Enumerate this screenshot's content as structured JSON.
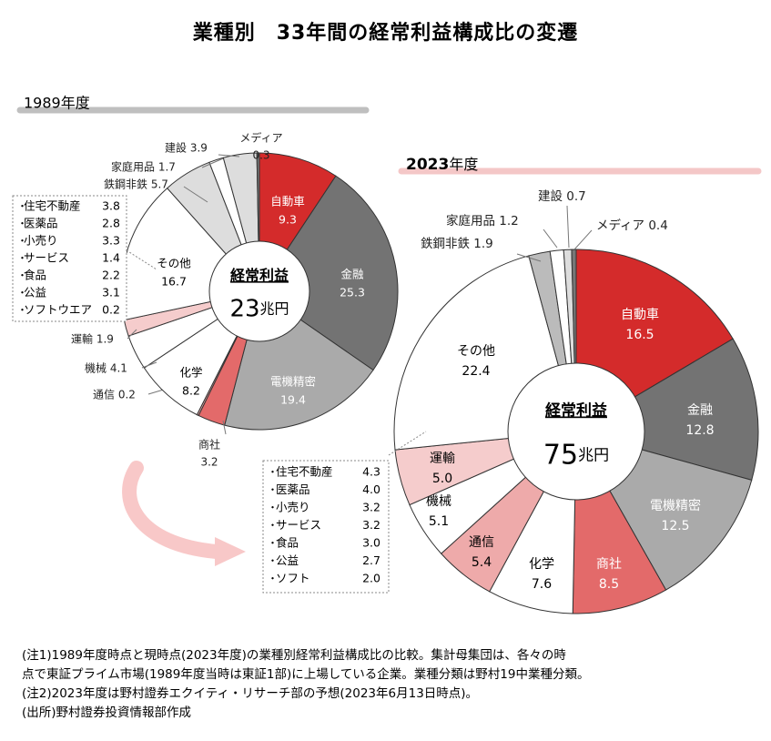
{
  "title": "業種別　33年間の経常利益構成比の変遷",
  "chart_data": [
    {
      "type": "pie",
      "title": "1989年度",
      "center_label": "経常利益",
      "center_value": "23",
      "center_unit": "兆円",
      "slices": [
        {
          "name": "自動車",
          "value": 9.3,
          "value_text": "9.3",
          "color": "#d42b2b"
        },
        {
          "name": "金融",
          "value": 25.3,
          "value_text": "25.3",
          "color": "#737373"
        },
        {
          "name": "電機精密",
          "value": 19.4,
          "value_text": "19.4",
          "color": "#aaaaaa"
        },
        {
          "name": "商社",
          "value": 3.2,
          "value_text": "3.2",
          "color": "#e36a6a"
        },
        {
          "name": "通信",
          "value": 0.2,
          "value_text": "0.2",
          "color": "#eeaaaa"
        },
        {
          "name": "化学",
          "value": 8.2,
          "value_text": "8.2",
          "color": "#ffffff"
        },
        {
          "name": "機械",
          "value": 4.1,
          "value_text": "4.1",
          "color": "#ffffff"
        },
        {
          "name": "運輸",
          "value": 1.9,
          "value_text": "1.9",
          "color": "#f5cccc"
        },
        {
          "name": "その他",
          "value": 16.7,
          "value_text": "16.7",
          "color": "#ffffff"
        },
        {
          "name": "鉄鋼非鉄",
          "value": 5.7,
          "value_text": "5.7",
          "color": "#dddddd"
        },
        {
          "name": "家庭用品",
          "value": 1.7,
          "value_text": "1.7",
          "color": "#ffffff"
        },
        {
          "name": "建設",
          "value": 3.9,
          "value_text": "3.9",
          "color": "#dddddd"
        },
        {
          "name": "メディア",
          "value": 0.3,
          "value_text": "0.3",
          "color": "#777777"
        }
      ],
      "other_breakdown": [
        {
          "name": "住宅不動産",
          "value": "3.8"
        },
        {
          "name": "医薬品",
          "value": "2.8"
        },
        {
          "name": "小売り",
          "value": "3.3"
        },
        {
          "name": "サービス",
          "value": "1.4"
        },
        {
          "name": "食品",
          "value": "2.2"
        },
        {
          "name": "公益",
          "value": "3.1"
        },
        {
          "name": "ソフトウエア",
          "value": "0.2"
        }
      ]
    },
    {
      "type": "pie",
      "title": "2023年度",
      "title_year": "2023",
      "title_suffix": "年度",
      "center_label": "経常利益",
      "center_value": "75",
      "center_unit": "兆円",
      "slices": [
        {
          "name": "自動車",
          "value": 16.5,
          "value_text": "16.5",
          "color": "#d42b2b"
        },
        {
          "name": "金融",
          "value": 12.8,
          "value_text": "12.8",
          "color": "#737373"
        },
        {
          "name": "電機精密",
          "value": 12.5,
          "value_text": "12.5",
          "color": "#aaaaaa"
        },
        {
          "name": "商社",
          "value": 8.5,
          "value_text": "8.5",
          "color": "#e36a6a"
        },
        {
          "name": "化学",
          "value": 7.6,
          "value_text": "7.6",
          "color": "#ffffff"
        },
        {
          "name": "通信",
          "value": 5.4,
          "value_text": "5.4",
          "color": "#eeaaaa"
        },
        {
          "name": "機械",
          "value": 5.1,
          "value_text": "5.1",
          "color": "#ffffff"
        },
        {
          "name": "運輸",
          "value": 5.0,
          "value_text": "5.0",
          "color": "#f5cccc"
        },
        {
          "name": "その他",
          "value": 22.4,
          "value_text": "22.4",
          "color": "#ffffff"
        },
        {
          "name": "鉄鋼非鉄",
          "value": 1.9,
          "value_text": "1.9",
          "color": "#bbbbbb"
        },
        {
          "name": "家庭用品",
          "value": 1.2,
          "value_text": "1.2",
          "color": "#ffffff"
        },
        {
          "name": "建設",
          "value": 0.7,
          "value_text": "0.7",
          "color": "#dddddd"
        },
        {
          "name": "メディア",
          "value": 0.4,
          "value_text": "0.4",
          "color": "#777777"
        }
      ],
      "other_breakdown": [
        {
          "name": "住宅不動産",
          "value": "4.3"
        },
        {
          "name": "医薬品",
          "value": "4.0"
        },
        {
          "name": "小売り",
          "value": "3.2"
        },
        {
          "name": "サービス",
          "value": "3.2"
        },
        {
          "name": "食品",
          "value": "3.0"
        },
        {
          "name": "公益",
          "value": "2.7"
        },
        {
          "name": "ソフト",
          "value": "2.0"
        }
      ]
    }
  ],
  "notes": [
    "(注1)1989年度時点と現時点(2023年度)の業種別経常利益構成比の比較。集計母集団は、各々の時",
    "点で東証プライム市場(1989年度当時は東証1部)に上場している企業。業種分類は野村19中業種分類。",
    "(注2)2023年度は野村證券エクイティ・リサーチ部の予想(2023年6月13日時点)。",
    "(出所)野村證券投資情報部作成"
  ],
  "colors": {
    "header_bar_1989": "#bfbfbf",
    "header_bar_2023": "#f4c7c7",
    "arrow": "#f8c8c8"
  }
}
